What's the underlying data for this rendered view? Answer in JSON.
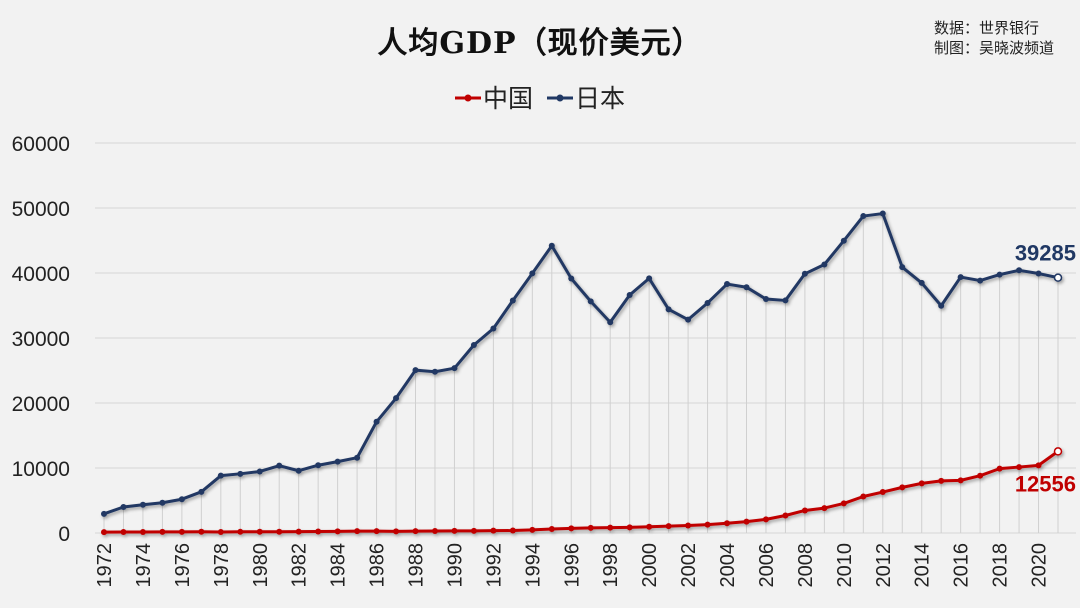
{
  "chart_data": {
    "type": "line",
    "title": "人均GDP（现价美元）",
    "source_lines": [
      "数据：世界银行",
      "制图：吴晓波频道"
    ],
    "xlabel": "",
    "ylabel": "",
    "ylim": [
      0,
      60000
    ],
    "yticks": [
      0,
      10000,
      20000,
      30000,
      40000,
      50000,
      60000
    ],
    "grid": true,
    "legend_position": "top-center",
    "x": [
      1972,
      1973,
      1974,
      1975,
      1976,
      1977,
      1978,
      1979,
      1980,
      1981,
      1982,
      1983,
      1984,
      1985,
      1986,
      1987,
      1988,
      1989,
      1990,
      1991,
      1992,
      1993,
      1994,
      1995,
      1996,
      1997,
      1998,
      1999,
      2000,
      2001,
      2002,
      2003,
      2004,
      2005,
      2006,
      2007,
      2008,
      2009,
      2010,
      2011,
      2012,
      2013,
      2014,
      2015,
      2016,
      2017,
      2018,
      2019,
      2020,
      2021
    ],
    "xtick_labels": [
      "1972",
      "1974",
      "1976",
      "1978",
      "1980",
      "1982",
      "1984",
      "1986",
      "1988",
      "1990",
      "1992",
      "1994",
      "1996",
      "1998",
      "2000",
      "2002",
      "2004",
      "2006",
      "2008",
      "2010",
      "2012",
      "2014",
      "2016",
      "2018",
      "2020"
    ],
    "series": [
      {
        "name": "中国",
        "color": "#c00000",
        "end_label": "12556",
        "values": [
          132,
          157,
          160,
          178,
          165,
          185,
          156,
          183,
          195,
          197,
          203,
          225,
          250,
          294,
          281,
          252,
          284,
          311,
          318,
          333,
          366,
          377,
          473,
          610,
          709,
          782,
          829,
          873,
          959,
          1053,
          1149,
          1289,
          1509,
          1753,
          2099,
          2694,
          3468,
          3832,
          4550,
          5614,
          6301,
          7020,
          7636,
          8016,
          8094,
          8817,
          9905,
          10144,
          10409,
          12556
        ]
      },
      {
        "name": "日本",
        "color": "#203864",
        "end_label": "39285",
        "values": [
          2950,
          3997,
          4354,
          4659,
          5198,
          6335,
          8821,
          9105,
          9463,
          10361,
          9578,
          10425,
          10984,
          11585,
          17112,
          20745,
          25052,
          24813,
          25359,
          28925,
          31465,
          35766,
          39934,
          44198,
          39150,
          35635,
          32424,
          36610,
          39169,
          34406,
          32821,
          35387,
          38299,
          37813,
          35991,
          35779,
          39877,
          41309,
          44968,
          48760,
          49145,
          40898,
          38475,
          34961,
          39375,
          38834,
          39751,
          40416,
          39918,
          39285
        ]
      }
    ]
  }
}
